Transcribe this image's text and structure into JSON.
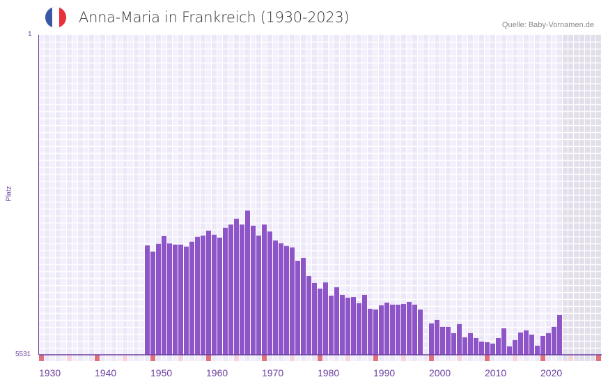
{
  "header": {
    "title": "Anna-Maria in Frankreich (1930-2023)",
    "source": "Quelle: Baby-Vornamen.de",
    "flag_colors": [
      "#3a57a7",
      "#ffffff",
      "#e8303a"
    ]
  },
  "colors": {
    "bar": "#8d55c8",
    "axis": "#6b3fa0",
    "decade_marker": "#e0707a",
    "half_decade_marker": "#f4d3dc",
    "future_shade": "#e2dfeb"
  },
  "chart_data": {
    "type": "bar",
    "title": "Anna-Maria in Frankreich (1930-2023)",
    "xlabel": "",
    "ylabel": "Platz",
    "ylim": [
      5531,
      1
    ],
    "y_inverted": true,
    "y_tick_labels": [
      "1",
      "5531"
    ],
    "x_range": [
      1930,
      2030
    ],
    "x_tick_labels": [
      "1930",
      "1940",
      "1950",
      "1960",
      "1970",
      "1980",
      "1990",
      "2000",
      "2010",
      "2020"
    ],
    "x": [
      1949,
      1950,
      1951,
      1952,
      1953,
      1954,
      1955,
      1956,
      1957,
      1958,
      1959,
      1960,
      1961,
      1962,
      1963,
      1964,
      1965,
      1966,
      1967,
      1968,
      1969,
      1970,
      1971,
      1972,
      1973,
      1974,
      1975,
      1976,
      1977,
      1978,
      1979,
      1980,
      1981,
      1982,
      1983,
      1984,
      1985,
      1986,
      1987,
      1988,
      1989,
      1990,
      1991,
      1992,
      1993,
      1994,
      1995,
      1996,
      1997,
      1998,
      1999,
      2000,
      2001,
      2002,
      2003,
      2004,
      2005,
      2006,
      2007,
      2008,
      2009,
      2010,
      2011,
      2012,
      2013,
      2014,
      2015,
      2016,
      2017,
      2018,
      2019,
      2020,
      2021,
      2022,
      2023
    ],
    "values": [
      3640,
      3747,
      3615,
      3475,
      3607,
      3627,
      3627,
      3663,
      3579,
      3495,
      3471,
      3387,
      3459,
      3507,
      3339,
      3279,
      3183,
      3279,
      3038,
      3303,
      3471,
      3279,
      3399,
      3555,
      3603,
      3651,
      3675,
      3907,
      3859,
      4172,
      4292,
      4387,
      4280,
      4509,
      4364,
      4496,
      4544,
      4533,
      4640,
      4496,
      4737,
      4749,
      4677,
      4629,
      4665,
      4665,
      4653,
      4617,
      4665,
      4749,
      null,
      4989,
      4929,
      5049,
      5049,
      5157,
      5001,
      5229,
      5157,
      5242,
      5302,
      5314,
      5338,
      5242,
      5074,
      5386,
      5278,
      5146,
      5110,
      5182,
      5374,
      5206,
      5157,
      5049,
      4845
    ],
    "last_data_year": 2023,
    "grid": true,
    "legend": "none"
  }
}
